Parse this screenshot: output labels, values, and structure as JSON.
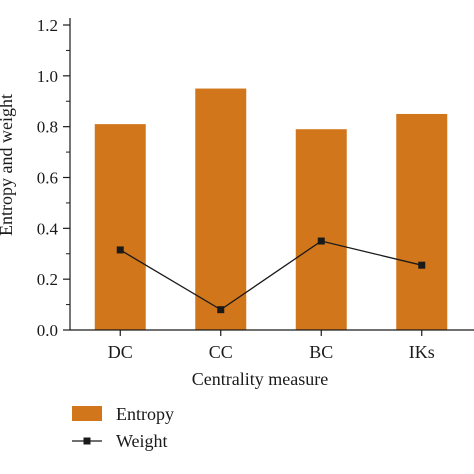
{
  "chart_data": {
    "type": "bar",
    "categories": [
      "DC",
      "CC",
      "BC",
      "IKs"
    ],
    "series": [
      {
        "name": "Entropy",
        "type": "bar",
        "values": [
          0.81,
          0.95,
          0.79,
          0.85
        ],
        "color": "#d2761c"
      },
      {
        "name": "Weight",
        "type": "line",
        "values": [
          0.315,
          0.08,
          0.35,
          0.255
        ],
        "color": "#1a1a1a"
      }
    ],
    "yticks": [
      "0.0",
      "0.2",
      "0.4",
      "0.6",
      "0.8",
      "1.0",
      "1.2"
    ],
    "ylim": [
      0,
      1.2
    ],
    "xlabel": "Centrality measure",
    "ylabel": "Entropy and weight",
    "legend": {
      "placement": "bottom-left"
    },
    "grid": false
  }
}
